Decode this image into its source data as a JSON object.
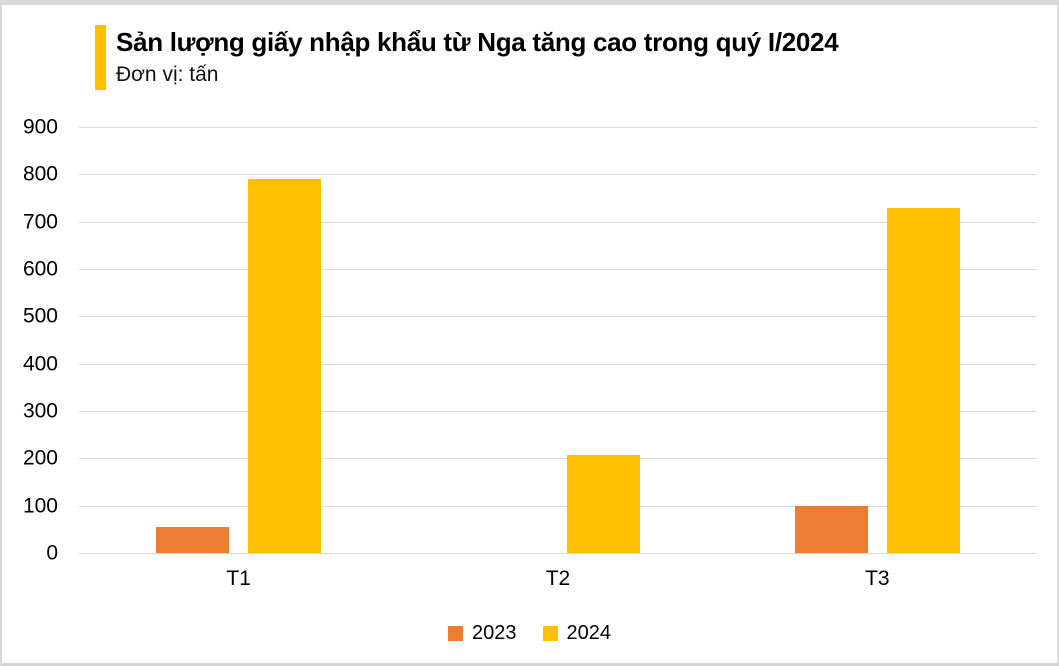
{
  "chart_data": {
    "type": "bar",
    "title": "Sản lượng giấy nhập khẩu từ Nga tăng cao trong quý I/2024",
    "unit_label": "Đơn vị: tấn",
    "categories": [
      "T1",
      "T2",
      "T3"
    ],
    "series": [
      {
        "name": "2023",
        "color": "#ED7D31",
        "values": [
          56,
          0,
          100
        ]
      },
      {
        "name": "2024",
        "color": "#FFC000",
        "values": [
          790,
          208,
          730
        ]
      }
    ],
    "ylim": [
      0,
      900
    ],
    "yticks": [
      0,
      100,
      200,
      300,
      400,
      500,
      600,
      700,
      800,
      900
    ],
    "grid": true,
    "gridline_color": "#D9D9D9",
    "legend_position": "bottom",
    "accent_color": "#FFC000",
    "background_color": "#FFFFFF"
  }
}
